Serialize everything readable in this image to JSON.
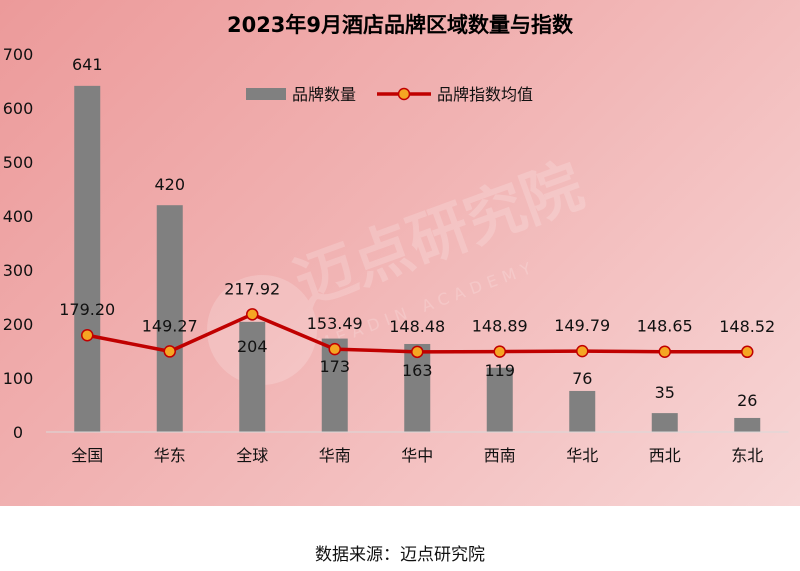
{
  "chart_data": {
    "type": "bar",
    "title": "2023年9月酒店品牌区域数量与指数",
    "categories": [
      "全国",
      "华东",
      "全球",
      "华南",
      "华中",
      "西南",
      "华北",
      "西北",
      "东北"
    ],
    "series": [
      {
        "name": "品牌数量",
        "type": "bar",
        "values": [
          641,
          420,
          204,
          173,
          163,
          119,
          76,
          35,
          26
        ],
        "color": "#808080"
      },
      {
        "name": "品牌指数均值",
        "type": "line",
        "values": [
          179.2,
          149.27,
          217.92,
          153.49,
          148.48,
          148.89,
          149.79,
          148.65,
          148.52
        ],
        "labels": [
          "179.20",
          "149.27",
          "217.92",
          "153.49",
          "148.48",
          "148.89",
          "149.79",
          "148.65",
          "148.52"
        ],
        "color": "#c00000",
        "marker_fill": "#f5a623"
      }
    ],
    "ylim": [
      0,
      700
    ],
    "yticks": [
      0,
      100,
      200,
      300,
      400,
      500,
      600,
      700
    ],
    "grid": false,
    "legend": "top-center"
  },
  "watermark": {
    "name": "迈点研究院",
    "sub": "MEADIN ACADEMY"
  },
  "source": "数据来源：迈点研究院"
}
